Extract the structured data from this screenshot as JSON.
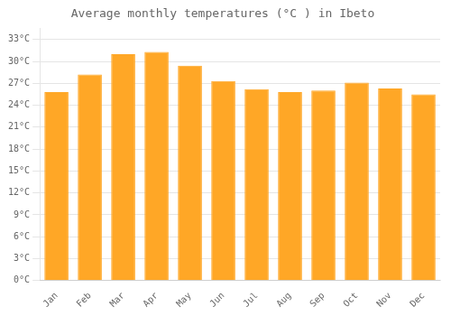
{
  "chart_data": {
    "type": "bar",
    "title": "Average monthly temperatures (°C ) in Ibeto",
    "categories": [
      "Jan",
      "Feb",
      "Mar",
      "Apr",
      "May",
      "Jun",
      "Jul",
      "Aug",
      "Sep",
      "Oct",
      "Nov",
      "Dec"
    ],
    "values": [
      25.8,
      28.2,
      31.0,
      31.3,
      29.4,
      27.3,
      26.2,
      25.8,
      26.0,
      27.1,
      26.3,
      25.5
    ],
    "color": "#FFA726",
    "ylim": [
      0,
      34.5
    ],
    "yticks": [
      {
        "value": 0,
        "label": "0°C"
      },
      {
        "value": 3,
        "label": "3°C"
      },
      {
        "value": 6,
        "label": "6°C"
      },
      {
        "value": 9,
        "label": "9°C"
      },
      {
        "value": 12,
        "label": "12°C"
      },
      {
        "value": 15,
        "label": "15°C"
      },
      {
        "value": 18,
        "label": "18°C"
      },
      {
        "value": 21,
        "label": "21°C"
      },
      {
        "value": 24,
        "label": "24°C"
      },
      {
        "value": 27,
        "label": "27°C"
      },
      {
        "value": 30,
        "label": "30°C"
      },
      {
        "value": 33,
        "label": "33°C"
      }
    ],
    "grid": true
  }
}
